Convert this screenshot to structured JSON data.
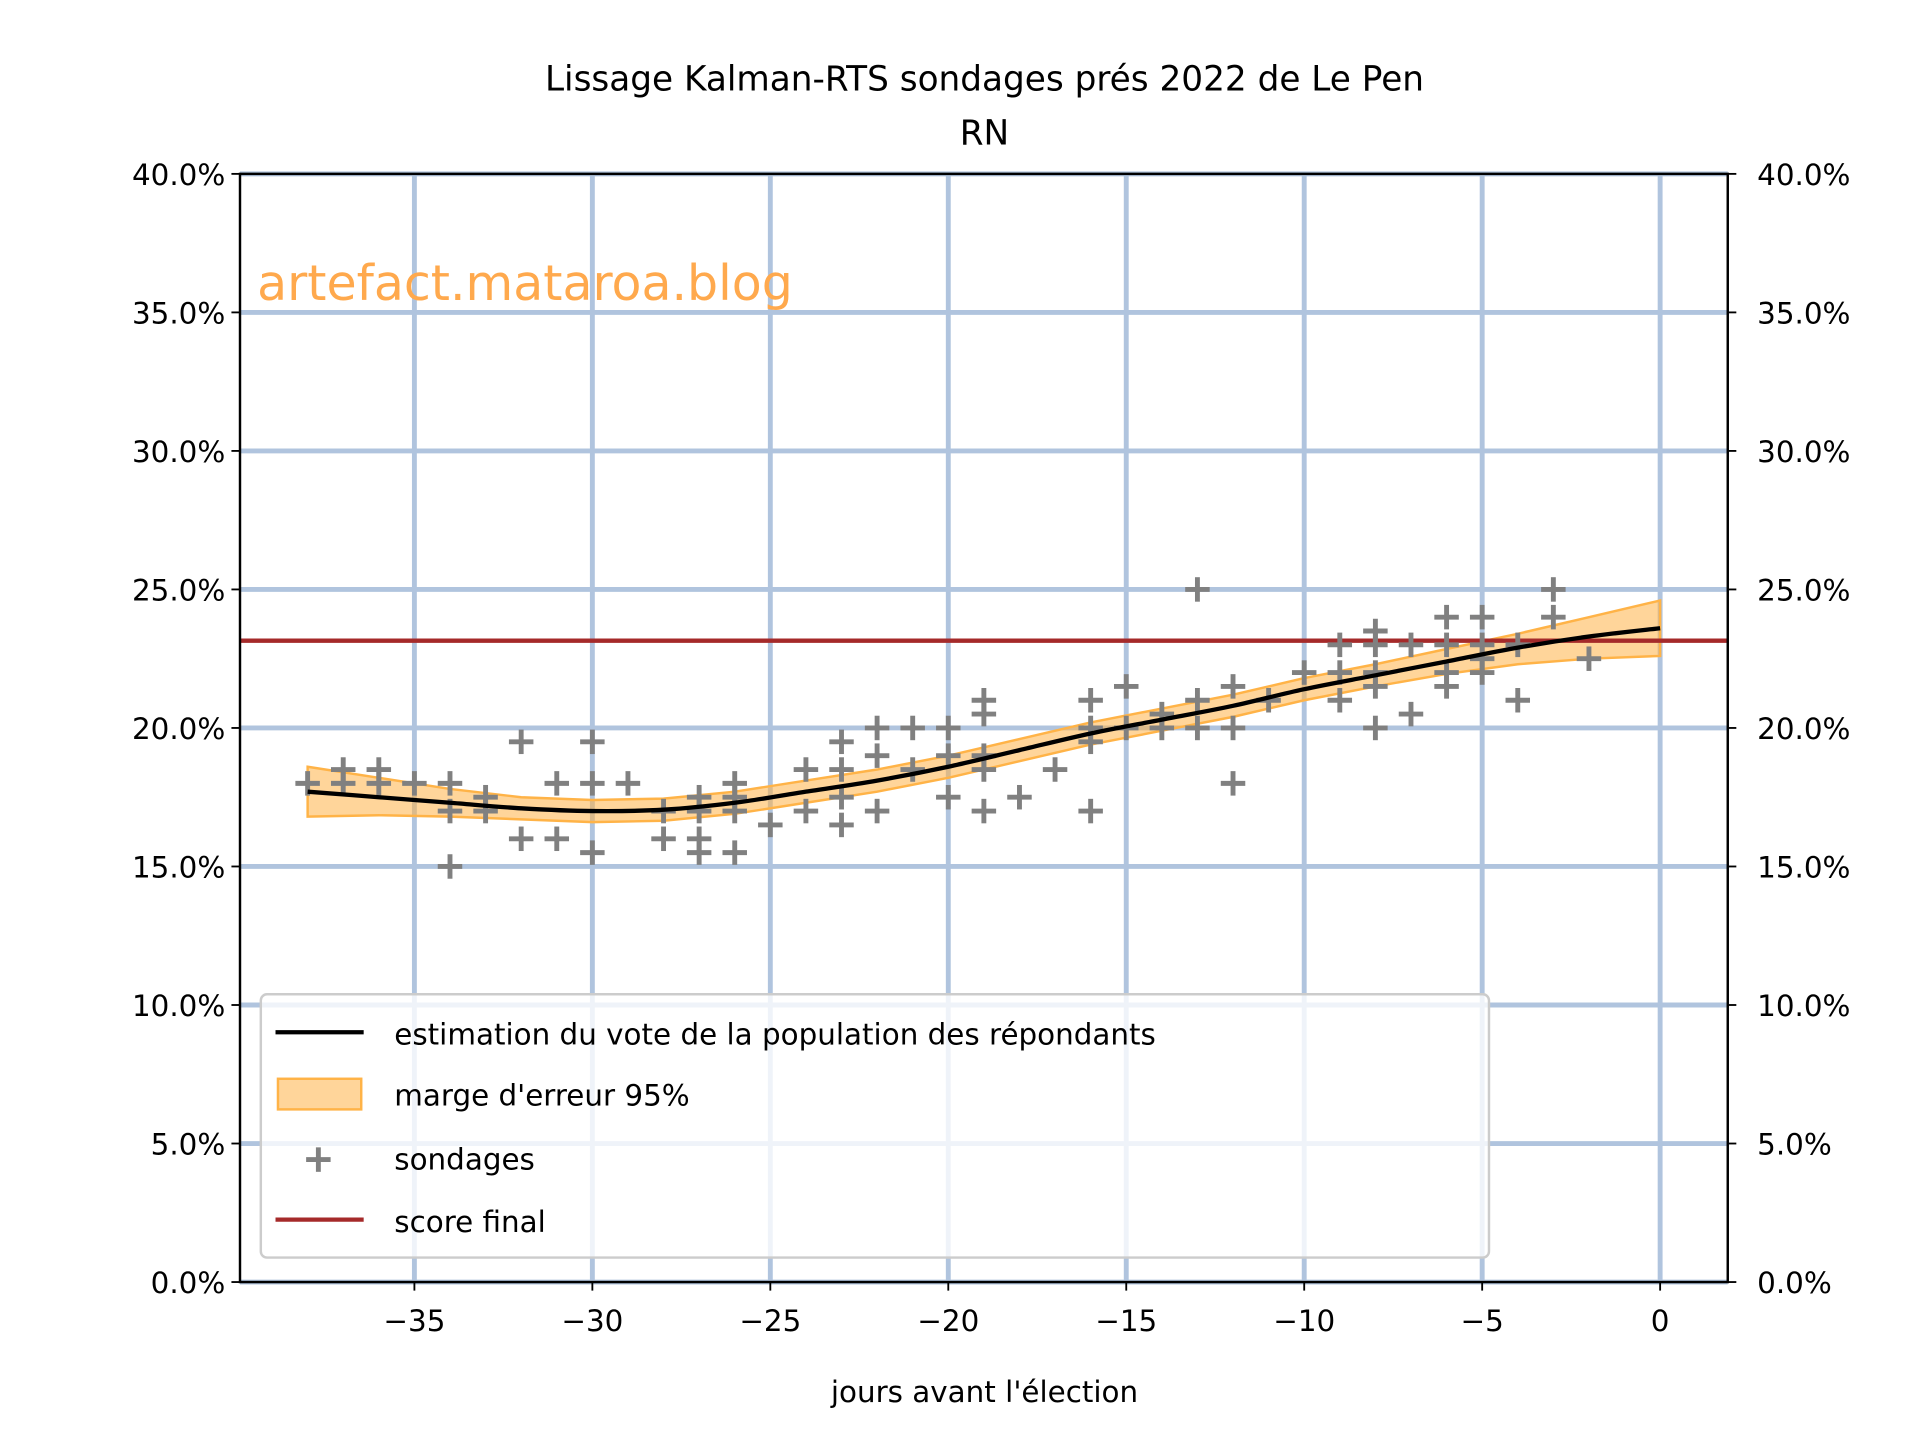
{
  "chart_data": {
    "type": "line",
    "title": "Lissage Kalman-RTS sondages prés 2022 de Le Pen",
    "subtitle": "RN",
    "xlabel": "jours avant l'élection",
    "ylabel": "",
    "xlim": [
      -39.9,
      1.9
    ],
    "ylim": [
      0,
      40
    ],
    "xticks": [
      -35,
      -30,
      -25,
      -20,
      -15,
      -10,
      -5,
      0
    ],
    "xtick_labels": [
      "−35",
      "−30",
      "−25",
      "−20",
      "−15",
      "−10",
      "−5",
      "0"
    ],
    "yticks": [
      0,
      5,
      10,
      15,
      20,
      25,
      30,
      35,
      40
    ],
    "ytick_labels": [
      "0.0%",
      "5.0%",
      "10.0%",
      "15.0%",
      "20.0%",
      "25.0%",
      "30.0%",
      "35.0%",
      "40.0%"
    ],
    "grid": true,
    "legend_position": "lower-left",
    "watermark": "artefact.mataroa.blog",
    "colors": {
      "estimate": "#000000",
      "band": "#ffb347",
      "polls": "#808080",
      "final": "#a52a2a",
      "grid": "#b0c4de",
      "watermark": "#ffa94d"
    },
    "series": [
      {
        "name": "estimation du vote de la population des répondants",
        "kind": "line",
        "x": [
          -38,
          -36,
          -34,
          -32,
          -30,
          -28,
          -26,
          -24,
          -22,
          -20,
          -18,
          -16,
          -14,
          -12,
          -10,
          -8,
          -6,
          -4,
          -2,
          0
        ],
        "y": [
          17.7,
          17.5,
          17.3,
          17.1,
          17.0,
          17.05,
          17.3,
          17.7,
          18.1,
          18.6,
          19.2,
          19.8,
          20.3,
          20.8,
          21.4,
          21.9,
          22.4,
          22.9,
          23.3,
          23.6
        ]
      },
      {
        "name": "marge d'erreur 95%",
        "kind": "band",
        "x": [
          -38,
          -36,
          -34,
          -32,
          -30,
          -28,
          -26,
          -24,
          -22,
          -20,
          -18,
          -16,
          -14,
          -12,
          -10,
          -8,
          -6,
          -4,
          -2,
          0
        ],
        "lower": [
          16.8,
          16.85,
          16.8,
          16.7,
          16.6,
          16.65,
          16.9,
          17.3,
          17.7,
          18.2,
          18.8,
          19.4,
          19.9,
          20.4,
          21.0,
          21.5,
          21.95,
          22.3,
          22.5,
          22.6
        ],
        "upper": [
          18.6,
          18.2,
          17.8,
          17.5,
          17.4,
          17.45,
          17.7,
          18.1,
          18.5,
          19.0,
          19.6,
          20.2,
          20.7,
          21.2,
          21.8,
          22.3,
          22.85,
          23.4,
          24.0,
          24.6
        ]
      },
      {
        "name": "sondages",
        "kind": "scatter",
        "points": [
          [
            -38,
            18
          ],
          [
            -37,
            18.5
          ],
          [
            -37,
            18
          ],
          [
            -36,
            18.5
          ],
          [
            -36,
            18
          ],
          [
            -35,
            18
          ],
          [
            -34,
            18
          ],
          [
            -34,
            17
          ],
          [
            -34,
            15
          ],
          [
            -33,
            17.5
          ],
          [
            -33,
            17
          ],
          [
            -32,
            19.5
          ],
          [
            -32,
            16
          ],
          [
            -31,
            18
          ],
          [
            -31,
            16
          ],
          [
            -30,
            19.5
          ],
          [
            -30,
            18
          ],
          [
            -30,
            15.5
          ],
          [
            -29,
            18
          ],
          [
            -28,
            17
          ],
          [
            -28,
            16
          ],
          [
            -27,
            17.5
          ],
          [
            -27,
            17
          ],
          [
            -27,
            16
          ],
          [
            -27,
            15.5
          ],
          [
            -26,
            18
          ],
          [
            -26,
            17.5
          ],
          [
            -26,
            17
          ],
          [
            -26,
            15.5
          ],
          [
            -25,
            16.5
          ],
          [
            -24,
            18.5
          ],
          [
            -24,
            17
          ],
          [
            -23,
            19.5
          ],
          [
            -23,
            18.5
          ],
          [
            -23,
            17.5
          ],
          [
            -23,
            16.5
          ],
          [
            -22,
            20
          ],
          [
            -22,
            19
          ],
          [
            -22,
            17
          ],
          [
            -21,
            20
          ],
          [
            -21,
            18.5
          ],
          [
            -20,
            20
          ],
          [
            -20,
            19
          ],
          [
            -20,
            17.5
          ],
          [
            -19,
            21
          ],
          [
            -19,
            20.5
          ],
          [
            -19,
            19
          ],
          [
            -19,
            18.5
          ],
          [
            -19,
            17
          ],
          [
            -18,
            17.5
          ],
          [
            -17,
            18.5
          ],
          [
            -16,
            21
          ],
          [
            -16,
            20
          ],
          [
            -16,
            19.5
          ],
          [
            -16,
            17
          ],
          [
            -15,
            21.5
          ],
          [
            -15,
            20
          ],
          [
            -14,
            20.5
          ],
          [
            -14,
            20
          ],
          [
            -13,
            25
          ],
          [
            -13,
            21
          ],
          [
            -13,
            20
          ],
          [
            -12,
            21.5
          ],
          [
            -12,
            20
          ],
          [
            -12,
            18
          ],
          [
            -11,
            21
          ],
          [
            -10,
            22
          ],
          [
            -9,
            23
          ],
          [
            -9,
            22
          ],
          [
            -9,
            21
          ],
          [
            -8,
            23.5
          ],
          [
            -8,
            23
          ],
          [
            -8,
            22
          ],
          [
            -8,
            21.5
          ],
          [
            -8,
            20
          ],
          [
            -7,
            23
          ],
          [
            -7,
            20.5
          ],
          [
            -6,
            24
          ],
          [
            -6,
            23
          ],
          [
            -6,
            22
          ],
          [
            -6,
            21.5
          ],
          [
            -5,
            24
          ],
          [
            -5,
            23
          ],
          [
            -5,
            22.5
          ],
          [
            -5,
            22
          ],
          [
            -4,
            23
          ],
          [
            -4,
            21
          ],
          [
            -3,
            25
          ],
          [
            -3,
            24
          ],
          [
            -2,
            22.5
          ]
        ]
      },
      {
        "name": "score final",
        "kind": "hline",
        "y": 23.15
      }
    ]
  }
}
